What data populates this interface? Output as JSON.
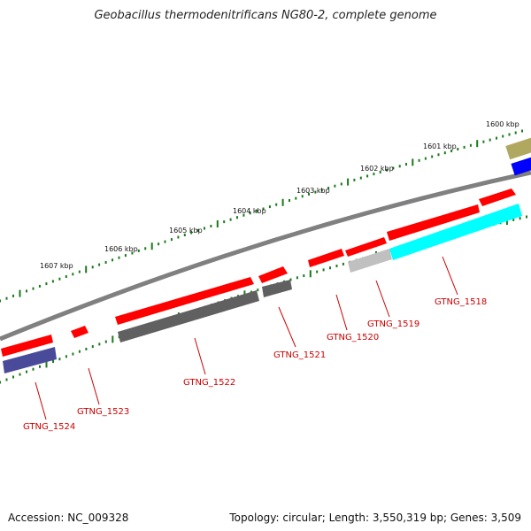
{
  "title": "Geobacillus thermodenitrificans NG80-2, complete genome",
  "footer": {
    "accession": "Accession: NC_009328",
    "info": "Topology: circular; Length: 3,550,319 bp; Genes: 3,509"
  },
  "scale_labels": [
    "1600 kbp",
    "1601 kbp",
    "1602 kbp",
    "1603 kbp",
    "1604 kbp",
    "1605 kbp",
    "1606 kbp",
    "1607 kbp"
  ],
  "gene_labels": [
    "GTNG_1518",
    "GTNG_1519",
    "GTNG_1520",
    "GTNG_1521",
    "GTNG_1522",
    "GTNG_1523",
    "GTNG_1524"
  ],
  "colors": {
    "backbone": "#808080",
    "cds": "#ff0000",
    "label": "#cc0000",
    "tick": "#1a7a1a",
    "gray_feature": "#606060",
    "light_gray_feature": "#c0c0c0",
    "cyan_feature": "#00ffff",
    "navy_feature": "#4a4a9a",
    "olive_feature": "#b0a860",
    "blue_feature": "#0000ff"
  }
}
